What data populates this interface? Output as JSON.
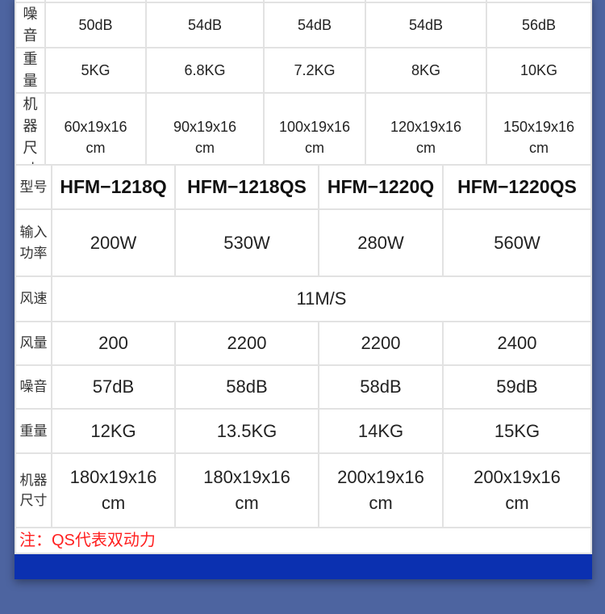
{
  "table1": {
    "rows": [
      {
        "label": "噪音",
        "values": [
          "50dB",
          "54dB",
          "54dB",
          "54dB",
          "56dB"
        ]
      },
      {
        "label": "重量",
        "values": [
          "5KG",
          "6.8KG",
          "7.2KG",
          "8KG",
          "10KG"
        ]
      },
      {
        "label": [
          "机器",
          "尺寸"
        ],
        "values": [
          [
            "60x19x16",
            "cm"
          ],
          [
            "90x19x16",
            "cm"
          ],
          [
            "100x19x16",
            "cm"
          ],
          [
            "120x19x16",
            "cm"
          ],
          [
            "150x19x16",
            "cm"
          ]
        ]
      }
    ]
  },
  "table2": {
    "model_label": "型号",
    "models": [
      "HFM−1218Q",
      "HFM−1218QS",
      "HFM−1220Q",
      "HFM−1220QS"
    ],
    "power": {
      "label": [
        "输入",
        "功率"
      ],
      "values": [
        "200W",
        "530W",
        "280W",
        "560W"
      ]
    },
    "wind_speed": {
      "label": "风速",
      "value": "11M/S"
    },
    "air_volume": {
      "label": "风量",
      "values": [
        "200",
        "2200",
        "2200",
        "2400"
      ]
    },
    "noise": {
      "label": "噪音",
      "values": [
        "57dB",
        "58dB",
        "58dB",
        "59dB"
      ]
    },
    "weight": {
      "label": "重量",
      "values": [
        "12KG",
        "13.5KG",
        "14KG",
        "15KG"
      ]
    },
    "size": {
      "label": [
        "机器",
        "尺寸"
      ],
      "values": [
        [
          "180x19x16",
          "cm"
        ],
        [
          "180x19x16",
          "cm"
        ],
        [
          "200x19x16",
          "cm"
        ],
        [
          "200x19x16",
          "cm"
        ]
      ]
    },
    "note": "注：QS代表双动力"
  },
  "colors": {
    "background": "#4d64a0",
    "band": "#0b30b0",
    "note": "#ff2020"
  }
}
